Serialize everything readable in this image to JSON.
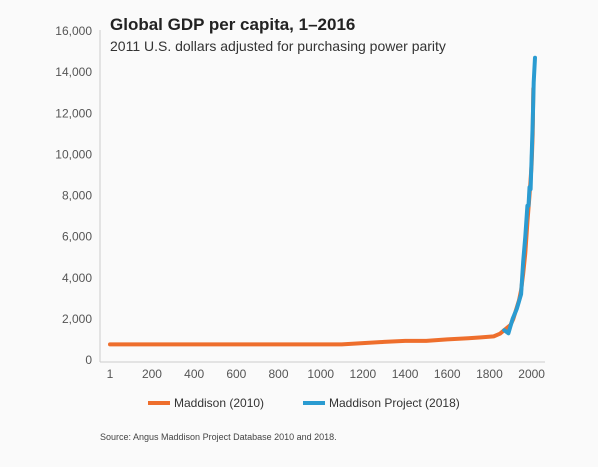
{
  "chart_data": {
    "type": "line",
    "title": "Global GDP per capita, 1–2016",
    "subtitle": "2011 U.S. dollars adjusted for purchasing power parity",
    "xlabel": "",
    "ylabel": "",
    "xlim": [
      1,
      2016
    ],
    "ylim": [
      0,
      16000
    ],
    "x_ticks": [
      1,
      200,
      400,
      600,
      800,
      1000,
      1200,
      1400,
      1600,
      1800,
      2000
    ],
    "x_tick_labels": [
      "1",
      "200",
      "400",
      "600",
      "800",
      "1000",
      "1200",
      "1400",
      "1600",
      "1800",
      "2000"
    ],
    "y_ticks": [
      0,
      2000,
      4000,
      6000,
      8000,
      10000,
      12000,
      14000,
      16000
    ],
    "y_tick_labels": [
      "0",
      "2,000",
      "4,000",
      "6,000",
      "8,000",
      "10,000",
      "12,000",
      "14,000",
      "16,000"
    ],
    "grid": false,
    "legend_position": "bottom",
    "series": [
      {
        "name": "Maddison (2010)",
        "color": "#ee6e2c",
        "points": [
          [
            1,
            760
          ],
          [
            1000,
            760
          ],
          [
            1100,
            760
          ],
          [
            1200,
            820
          ],
          [
            1300,
            880
          ],
          [
            1400,
            930
          ],
          [
            1500,
            930
          ],
          [
            1600,
            1000
          ],
          [
            1700,
            1060
          ],
          [
            1760,
            1100
          ],
          [
            1820,
            1150
          ],
          [
            1850,
            1280
          ],
          [
            1870,
            1450
          ],
          [
            1900,
            1700
          ],
          [
            1913,
            2000
          ],
          [
            1940,
            2900
          ],
          [
            1950,
            3400
          ],
          [
            1960,
            4200
          ],
          [
            1970,
            5200
          ],
          [
            1980,
            6700
          ],
          [
            1990,
            8000
          ],
          [
            2000,
            9500
          ],
          [
            2005,
            11000
          ],
          [
            2008,
            13200
          ]
        ]
      },
      {
        "name": "Maddison Project (2018)",
        "color": "#2a9bd1",
        "points": [
          [
            1870,
            1450
          ],
          [
            1890,
            1300
          ],
          [
            1910,
            2000
          ],
          [
            1930,
            2500
          ],
          [
            1950,
            3200
          ],
          [
            1960,
            4800
          ],
          [
            1970,
            6000
          ],
          [
            1980,
            7500
          ],
          [
            1985,
            7500
          ],
          [
            1990,
            8400
          ],
          [
            1995,
            8300
          ],
          [
            2000,
            9800
          ],
          [
            2005,
            11500
          ],
          [
            2010,
            13500
          ],
          [
            2016,
            14700
          ]
        ]
      }
    ],
    "source": "Source: Angus Maddison Project Database 2010 and 2018."
  }
}
